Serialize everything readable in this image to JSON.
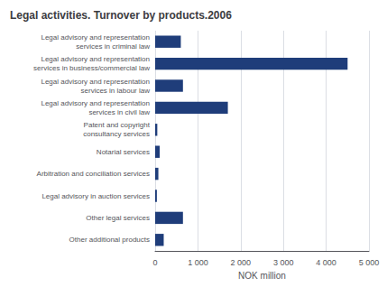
{
  "chart_data": {
    "type": "bar",
    "orientation": "horizontal",
    "title": "Legal activities. Turnover by products.2006",
    "categories": [
      "Legal advisory and representation\nservices in criminal law",
      "Legal advisory and representation\nservices in business/commercial law",
      "Legal advisory and representation\nservices in labour law",
      "Legal advisory and representation\nservices in civil law",
      "Patent and copyright\nconsultancy services",
      "Notarial services",
      "Arbitration and conciliation services",
      "Legal advisory in auction services",
      "Other legal services",
      "Other additional products"
    ],
    "values": [
      600,
      4500,
      650,
      1700,
      50,
      105,
      75,
      40,
      650,
      200
    ],
    "color": "#1F3D7A",
    "xlabel": "NOK million",
    "xlim": [
      0,
      5000
    ],
    "xticks": [
      0,
      {
        "value": 1000,
        "label": "1 000"
      },
      {
        "value": 2000,
        "label": "2 000"
      },
      {
        "value": 3000,
        "label": "3 000"
      },
      {
        "value": 4000,
        "label": "4 000"
      },
      {
        "value": 5000,
        "label": "5 000"
      }
    ],
    "grid": true
  }
}
